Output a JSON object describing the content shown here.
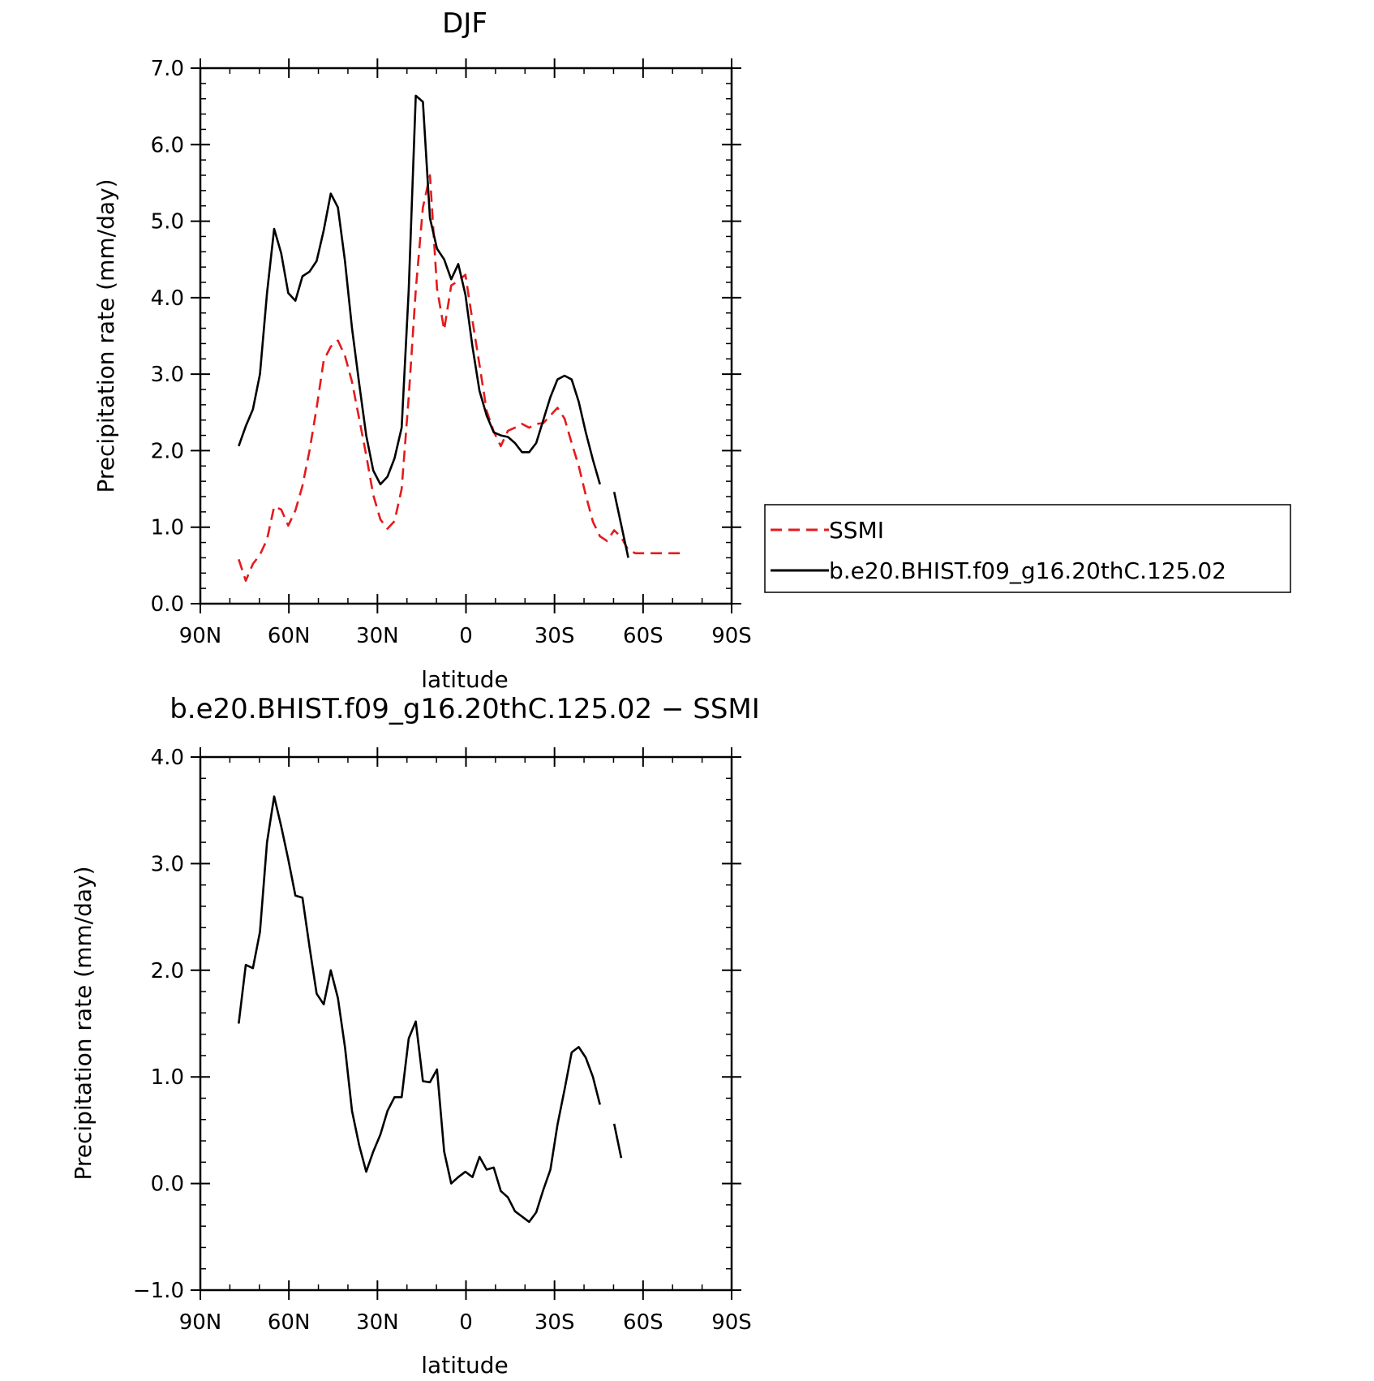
{
  "chart_data": [
    {
      "type": "line",
      "title": "DJF",
      "xlabel": "latitude",
      "ylabel": "Precipitation rate (mm/day)",
      "xlim": [
        90,
        -90
      ],
      "ylim": [
        0,
        7
      ],
      "yticks": [
        "0.0",
        "1.0",
        "2.0",
        "3.0",
        "4.0",
        "5.0",
        "6.0",
        "7.0"
      ],
      "xticks": [
        "90N",
        "60N",
        "30N",
        "0",
        "30S",
        "60S",
        "90S"
      ],
      "legend": "right",
      "series": [
        {
          "name": "SSMI",
          "color": "#e41a1c",
          "dash": "dashed",
          "x": [
            77,
            74.6,
            72.2,
            69.8,
            67.4,
            65,
            62.6,
            60.2,
            57.8,
            55.4,
            53,
            50.6,
            48.2,
            45.8,
            43.4,
            41,
            38.6,
            36.2,
            33.8,
            31.4,
            29,
            26.6,
            24.2,
            21.8,
            19.4,
            17,
            14.6,
            12.2,
            9.8,
            7.4,
            5,
            2.6,
            0.2,
            -2.2,
            -4.6,
            -7,
            -9.4,
            -11.8,
            -14.2,
            -16.6,
            -19,
            -21.4,
            -23.8,
            -26.2,
            -28.6,
            -31,
            -33.4,
            -35.8,
            -38.2,
            -40.6,
            -43,
            -45.4,
            -47.8,
            -50.2,
            -52.6,
            -55,
            -57.4,
            -59.8,
            -62.2,
            -64.6,
            -67,
            -69.4,
            -71.8,
            -74.2
          ],
          "values": [
            0.58,
            0.3,
            0.52,
            0.64,
            0.84,
            1.27,
            1.23,
            1.02,
            1.22,
            1.54,
            2.0,
            2.56,
            3.18,
            3.36,
            3.44,
            3.24,
            2.9,
            2.42,
            1.94,
            1.42,
            1.1,
            0.98,
            1.08,
            1.5,
            2.7,
            4.1,
            5.18,
            5.6,
            4.12,
            3.58,
            4.16,
            4.22,
            4.3,
            3.7,
            3.12,
            2.52,
            2.25,
            2.06,
            2.26,
            2.3,
            2.35,
            2.3,
            2.35,
            2.36,
            2.46,
            2.56,
            2.42,
            2.1,
            1.8,
            1.42,
            1.07,
            0.88,
            0.82,
            0.96,
            0.87,
            0.7,
            0.66,
            0.66,
            0.66,
            0.66,
            0.66,
            0.66,
            0.66,
            0.66
          ]
        },
        {
          "name": "b.e20.BHIST.f09_g16.20thC.125.02",
          "color": "#000000",
          "dash": "solid",
          "x": [
            77,
            74.6,
            72.2,
            69.8,
            67.4,
            65,
            62.6,
            60.2,
            57.8,
            55.4,
            53,
            50.6,
            48.2,
            45.8,
            43.4,
            41,
            38.6,
            36.2,
            33.8,
            31.4,
            29,
            26.6,
            24.2,
            21.8,
            19.4,
            17,
            14.6,
            12.2,
            9.8,
            7.4,
            5,
            2.6,
            0.2,
            -2.2,
            -4.6,
            -7,
            -9.4,
            -11.8,
            -14.2,
            -16.6,
            -19,
            -21.4,
            -23.8,
            -26.2,
            -28.6,
            -31,
            -33.4,
            -35.8,
            -38.2,
            -40.6,
            -43,
            -45.4,
            -47.8,
            -50.2,
            -52.6,
            -55,
            -57.4,
            -59.8,
            -62.2,
            -64.6,
            -67
          ],
          "values": [
            2.06,
            2.32,
            2.54,
            3.0,
            4.06,
            4.9,
            4.58,
            4.06,
            3.96,
            4.28,
            4.34,
            4.48,
            4.88,
            5.36,
            5.18,
            4.48,
            3.6,
            2.88,
            2.2,
            1.74,
            1.56,
            1.66,
            1.9,
            2.3,
            4.1,
            6.64,
            6.56,
            5.04,
            4.64,
            4.5,
            4.24,
            4.44,
            4.04,
            3.36,
            2.78,
            2.46,
            2.24,
            2.2,
            2.18,
            2.1,
            1.98,
            1.98,
            2.1,
            2.4,
            2.7,
            2.93,
            2.98,
            2.93,
            2.64,
            2.24,
            1.88,
            1.56,
            null,
            1.46,
            1.03,
            0.6,
            null,
            null,
            null,
            null,
            null
          ],
          "x_actual": [],
          "note_gap": ""
        }
      ]
    },
    {
      "type": "line",
      "title": "b.e20.BHIST.f09_g16.20thC.125.02 − SSMI",
      "xlabel": "latitude",
      "ylabel": "Precipitation rate (mm/day)",
      "xlim": [
        90,
        -90
      ],
      "ylim": [
        -1,
        4
      ],
      "yticks": [
        "−1.0",
        "0.0",
        "1.0",
        "2.0",
        "3.0",
        "4.0"
      ],
      "xticks": [
        "90N",
        "60N",
        "30N",
        "0",
        "30S",
        "60S",
        "90S"
      ],
      "series": [
        {
          "color": "#000000",
          "dash": "solid",
          "x": [
            77,
            74.6,
            72.2,
            69.8,
            67.4,
            65,
            62.6,
            60.2,
            57.8,
            55.4,
            53,
            50.6,
            48.2,
            45.8,
            43.4,
            41,
            38.6,
            36.2,
            33.8,
            31.4,
            29,
            26.6,
            24.2,
            21.8,
            19.4,
            17,
            14.6,
            12.2,
            9.8,
            7.4,
            5,
            2.6,
            0.2,
            -2.2,
            -4.6,
            -7,
            -9.4,
            -11.8,
            -14.2,
            -16.6,
            -19,
            -21.4,
            -23.8,
            -26.2,
            -28.6,
            -31,
            -33.4,
            -35.8,
            -38.2,
            -40.6,
            -43,
            -45.4,
            -47.8,
            -50.2,
            -52.6,
            -55,
            -57.4,
            -59.8,
            -62.2,
            -64.6,
            -67,
            -69.4,
            -71.8,
            -74.2
          ],
          "values": [
            1.5,
            2.05,
            2.02,
            2.36,
            3.2,
            3.63,
            3.35,
            3.04,
            2.7,
            2.68,
            2.22,
            1.78,
            1.68,
            2.0,
            1.74,
            1.28,
            0.68,
            0.36,
            0.11,
            0.3,
            0.46,
            0.68,
            0.81,
            0.81,
            1.36,
            1.52,
            0.96,
            0.95,
            1.07,
            0.3,
            0.0,
            0.06,
            0.11,
            0.06,
            0.25,
            0.13,
            0.15,
            -0.07,
            -0.13,
            -0.26,
            -0.31,
            -0.36,
            -0.27,
            -0.06,
            0.13,
            0.55,
            0.88,
            1.23,
            1.28,
            1.18,
            1.0,
            0.74,
            null,
            0.56,
            0.24,
            null,
            null,
            null,
            null,
            null,
            null,
            null,
            null,
            null
          ]
        }
      ]
    }
  ]
}
